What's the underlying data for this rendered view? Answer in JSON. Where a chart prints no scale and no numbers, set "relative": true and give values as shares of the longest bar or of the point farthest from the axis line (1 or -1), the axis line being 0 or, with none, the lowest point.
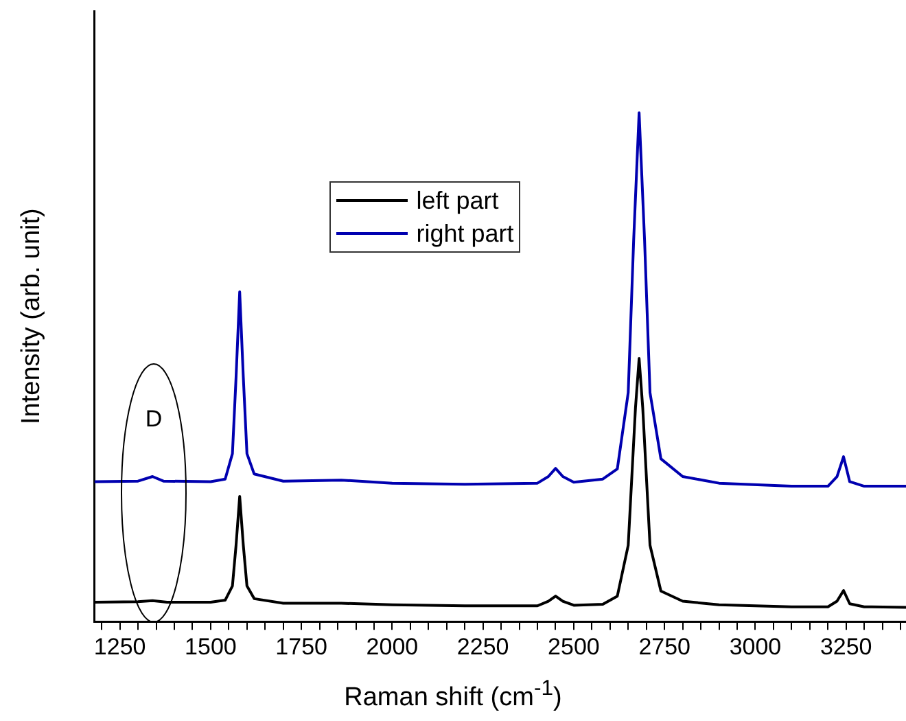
{
  "chart_data": {
    "type": "line",
    "relative": true,
    "xlabel": "Raman shift (cm$^{-1}$)",
    "ylabel": "Intensity (arb. unit)",
    "xlim": [
      1180,
      3415
    ],
    "xticks": [
      {
        "value": 1200,
        "label": null
      },
      1250,
      {
        "value": 1300,
        "label": null
      },
      {
        "value": 1350,
        "label": null
      },
      {
        "value": 1400,
        "label": null
      },
      {
        "value": 1450,
        "label": null
      },
      1500,
      {
        "value": 1550,
        "label": null
      },
      {
        "value": 1600,
        "label": null
      },
      {
        "value": 1650,
        "label": null
      },
      {
        "value": 1700,
        "label": null
      },
      1750,
      {
        "value": 1800,
        "label": null
      },
      {
        "value": 1850,
        "label": null
      },
      {
        "value": 1900,
        "label": null
      },
      {
        "value": 1950,
        "label": null
      },
      2000,
      {
        "value": 2050,
        "label": null
      },
      {
        "value": 2100,
        "label": null
      },
      {
        "value": 2150,
        "label": null
      },
      {
        "value": 2200,
        "label": null
      },
      2250,
      {
        "value": 2300,
        "label": null
      },
      {
        "value": 2350,
        "label": null
      },
      {
        "value": 2400,
        "label": null
      },
      {
        "value": 2450,
        "label": null
      },
      2500,
      {
        "value": 2550,
        "label": null
      },
      {
        "value": 2600,
        "label": null
      },
      {
        "value": 2650,
        "label": null
      },
      {
        "value": 2700,
        "label": null
      },
      2750,
      {
        "value": 2800,
        "label": null
      },
      {
        "value": 2850,
        "label": null
      },
      {
        "value": 2900,
        "label": null
      },
      {
        "value": 2950,
        "label": null
      },
      3000,
      {
        "value": 3050,
        "label": null
      },
      {
        "value": 3100,
        "label": null
      },
      {
        "value": 3150,
        "label": null
      },
      {
        "value": 3200,
        "label": null
      },
      3250,
      {
        "value": 3300,
        "label": null
      },
      {
        "value": 3350,
        "label": null
      },
      {
        "value": 3400,
        "label": null
      }
    ],
    "legend": "top",
    "grid": false,
    "marker": "none",
    "line_style": "solid",
    "annotations": [
      "D"
    ],
    "series": [
      {
        "name": "left part",
        "color": "#000000",
        "x": [
          1180,
          1300,
          1340,
          1380,
          1500,
          1540,
          1560,
          1570,
          1580,
          1590,
          1600,
          1620,
          1700,
          1860,
          2000,
          2200,
          2400,
          2430,
          2450,
          2470,
          2500,
          2580,
          2620,
          2650,
          2670,
          2680,
          2690,
          2710,
          2740,
          2800,
          2900,
          3100,
          3200,
          3225,
          3243,
          3260,
          3300,
          3415
        ],
        "values": [
          0.038,
          0.039,
          0.041,
          0.038,
          0.038,
          0.042,
          0.07,
          0.15,
          0.246,
          0.15,
          0.07,
          0.045,
          0.036,
          0.036,
          0.033,
          0.031,
          0.031,
          0.04,
          0.05,
          0.04,
          0.032,
          0.034,
          0.05,
          0.15,
          0.42,
          0.517,
          0.42,
          0.15,
          0.06,
          0.04,
          0.033,
          0.029,
          0.029,
          0.04,
          0.061,
          0.035,
          0.029,
          0.028
        ]
      },
      {
        "name": "right part",
        "color": "#0000b0",
        "x": [
          1180,
          1300,
          1340,
          1370,
          1500,
          1540,
          1560,
          1570,
          1580,
          1590,
          1600,
          1620,
          1700,
          1860,
          2000,
          2200,
          2400,
          2430,
          2450,
          2470,
          2500,
          2580,
          2620,
          2650,
          2665,
          2680,
          2695,
          2710,
          2740,
          2800,
          2900,
          3100,
          3200,
          3225,
          3243,
          3260,
          3300,
          3415
        ],
        "values": [
          0.275,
          0.276,
          0.285,
          0.276,
          0.275,
          0.28,
          0.33,
          0.48,
          0.648,
          0.48,
          0.33,
          0.29,
          0.276,
          0.278,
          0.272,
          0.27,
          0.272,
          0.285,
          0.301,
          0.285,
          0.274,
          0.28,
          0.3,
          0.45,
          0.75,
          1,
          0.75,
          0.45,
          0.32,
          0.285,
          0.272,
          0.266,
          0.266,
          0.285,
          0.324,
          0.275,
          0.266,
          0.266
        ]
      }
    ]
  }
}
